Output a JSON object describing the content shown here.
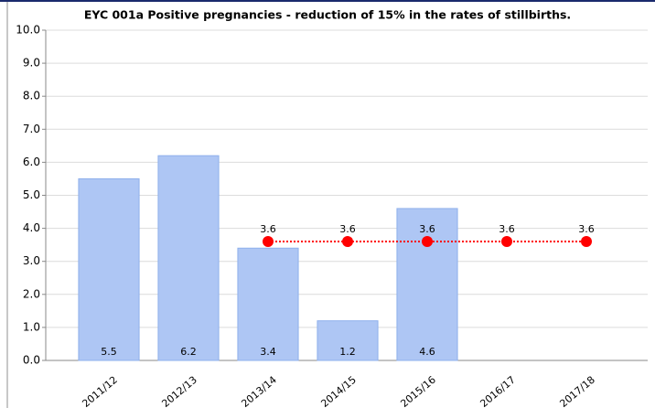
{
  "chart_data": {
    "type": "bar",
    "title": "EYC 001a Positive pregnancies - reduction of 15% in the rates of stillbirths.",
    "categories": [
      "2011/12",
      "2012/13",
      "2013/14",
      "2014/15",
      "2015/16",
      "2016/17",
      "2017/18"
    ],
    "series": [
      {
        "type": "bar",
        "color": "#aec6f4",
        "values": [
          5.5,
          6.2,
          3.4,
          1.2,
          4.6,
          null,
          null
        ]
      },
      {
        "type": "line",
        "color": "#ff0000",
        "values": [
          null,
          null,
          3.6,
          3.6,
          3.6,
          3.6,
          3.6
        ]
      }
    ],
    "ylim": [
      0,
      10
    ],
    "yticks": [
      {
        "value": 0,
        "label": "0.0"
      },
      {
        "value": 1,
        "label": "1.0"
      },
      {
        "value": 2,
        "label": "2.0"
      },
      {
        "value": 3,
        "label": "3.0"
      },
      {
        "value": 4,
        "label": "4.0"
      },
      {
        "value": 5,
        "label": "5.0"
      },
      {
        "value": 6,
        "label": "6.0"
      },
      {
        "value": 7,
        "label": "7.0"
      },
      {
        "value": 8,
        "label": "8.0"
      },
      {
        "value": 9,
        "label": "9.0"
      },
      {
        "value": 10,
        "label": "10.0"
      }
    ],
    "grid": true
  }
}
